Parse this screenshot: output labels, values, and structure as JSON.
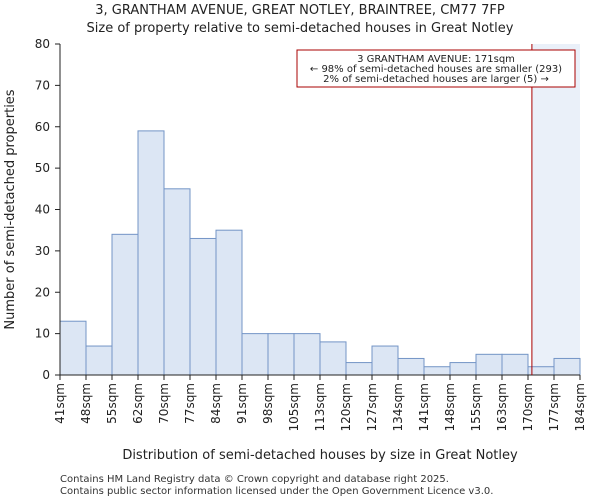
{
  "chart_data": {
    "type": "bar",
    "title_line1": "3, GRANTHAM AVENUE, GREAT NOTLEY, BRAINTREE, CM77 7FP",
    "title_line2": "Size of property relative to semi-detached houses in Great Notley",
    "xlabel": "Distribution of semi-detached houses by size in Great Notley",
    "ylabel": "Number of semi-detached properties",
    "ylim": [
      0,
      80
    ],
    "yticks": [
      0,
      10,
      20,
      30,
      40,
      50,
      60,
      70,
      80
    ],
    "bin_edges": [
      "41sqm",
      "48sqm",
      "55sqm",
      "62sqm",
      "70sqm",
      "77sqm",
      "84sqm",
      "91sqm",
      "98sqm",
      "105sqm",
      "113sqm",
      "120sqm",
      "127sqm",
      "134sqm",
      "141sqm",
      "148sqm",
      "155sqm",
      "163sqm",
      "170sqm",
      "177sqm",
      "184sqm"
    ],
    "values": [
      13,
      7,
      34,
      59,
      45,
      33,
      35,
      10,
      10,
      10,
      8,
      3,
      7,
      4,
      2,
      3,
      5,
      5,
      2,
      4
    ],
    "property_marker": {
      "label": "3 GRANTHAM AVENUE: 171sqm",
      "bin_position": 18.15
    },
    "annotation": {
      "line1": "3 GRANTHAM AVENUE: 171sqm",
      "line2": "← 98% of semi-detached houses are smaller (293)",
      "line3": "2% of semi-detached houses are larger (5) →"
    },
    "colors": {
      "bar_fill": "#dce6f4",
      "bar_stroke": "#7394c6",
      "marker": "#aa0000",
      "shade": "#eaf0f9"
    },
    "grid": false,
    "legend": "none"
  },
  "footer": {
    "line1": "Contains HM Land Registry data © Crown copyright and database right 2025.",
    "line2": "Contains public sector information licensed under the Open Government Licence v3.0."
  }
}
